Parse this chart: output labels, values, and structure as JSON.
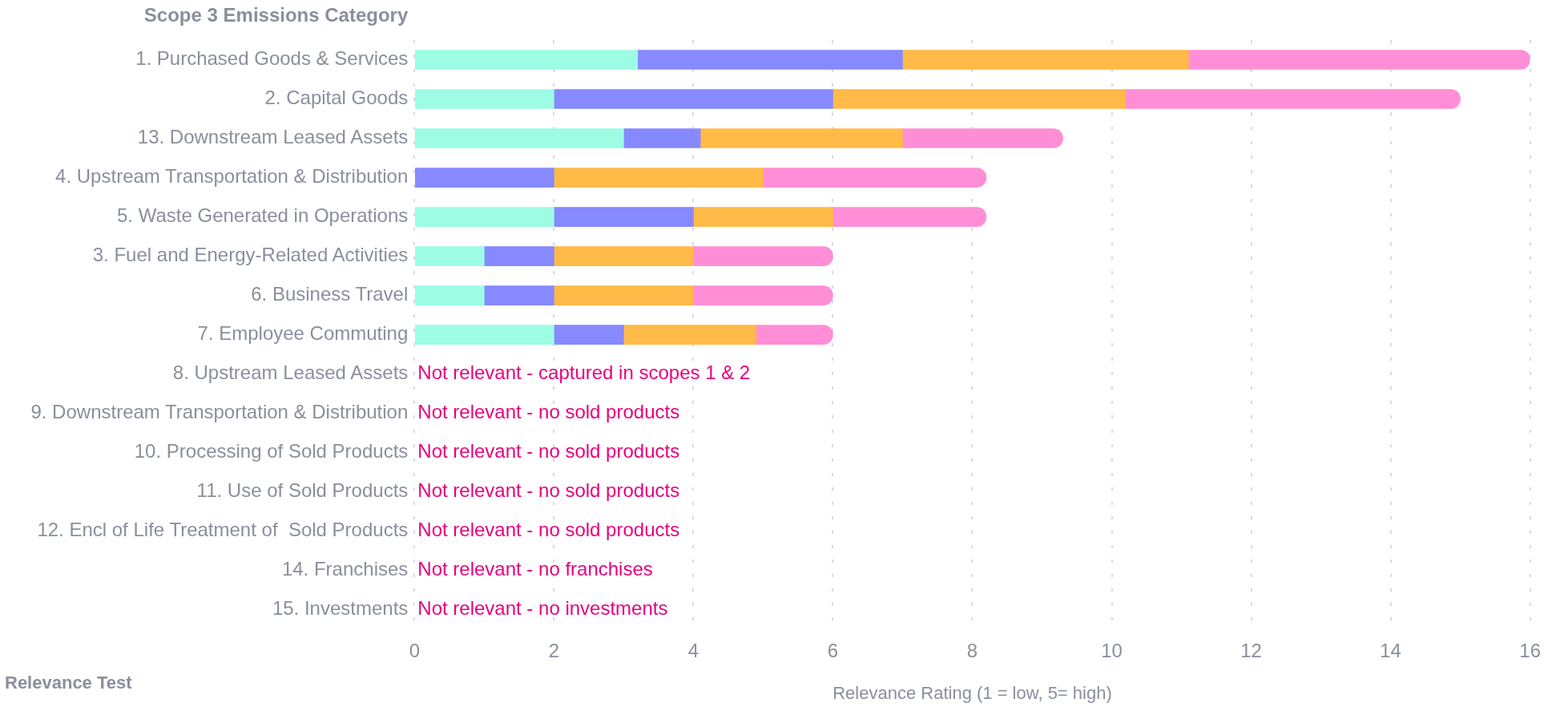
{
  "chart_data": {
    "type": "bar",
    "orientation": "horizontal",
    "stacked": true,
    "ylabel": "Scope 3 Emissions Category",
    "xlabel": "Relevance Rating (1 = low, 5= high)",
    "categories": [
      "1. Purchased Goods & Services",
      "2. Capital Goods",
      "13. Downstream Leased Assets",
      "4. Upstream Transportation & Distribution",
      "5. Waste Generated in Operations",
      "3. Fuel and Energy-Related Activities",
      "6. Business Travel",
      "7. Employee Commuting",
      "8. Upstream Leased Assets",
      "9. Downstream Transportation & Distribution",
      "10. Processing of Sold Products",
      "11. Use of Sold Products",
      "12. Encl of Life Treatment of  Sold Products",
      "14. Franchises",
      "15. Investments"
    ],
    "series": [
      {
        "color": "#9cfce4",
        "values": [
          3.2,
          2,
          3,
          null,
          2,
          1,
          1,
          2,
          null,
          null,
          null,
          null,
          null,
          null,
          null
        ]
      },
      {
        "color": "#8689ff",
        "values": [
          3.8,
          4,
          1.1,
          2,
          2,
          1,
          1,
          1,
          null,
          null,
          null,
          null,
          null,
          null,
          null
        ]
      },
      {
        "color": "#ffba47",
        "values": [
          4.1,
          4.2,
          2.9,
          3,
          2,
          2,
          2,
          1.9,
          null,
          null,
          null,
          null,
          null,
          null,
          null
        ]
      },
      {
        "color": "#ff8ed6",
        "values": [
          4.9,
          4.8,
          2.3,
          3.2,
          2.2,
          2,
          2,
          1.1,
          null,
          null,
          null,
          null,
          null,
          null,
          null
        ]
      }
    ],
    "xlim": [
      0,
      16
    ],
    "xticks": [
      0,
      2,
      4,
      6,
      8,
      10,
      12,
      14,
      16
    ],
    "grid": "x",
    "legend": false,
    "annotations": [
      "Not relevant - captured in scopes 1 & 2",
      "Not relevant - no sold products",
      "Not relevant - no sold products",
      "Not relevant - no sold products",
      "Not relevant - no sold products",
      "Not relevant - no franchises",
      "Not relevant - no investments",
      "Relevance Test"
    ]
  }
}
